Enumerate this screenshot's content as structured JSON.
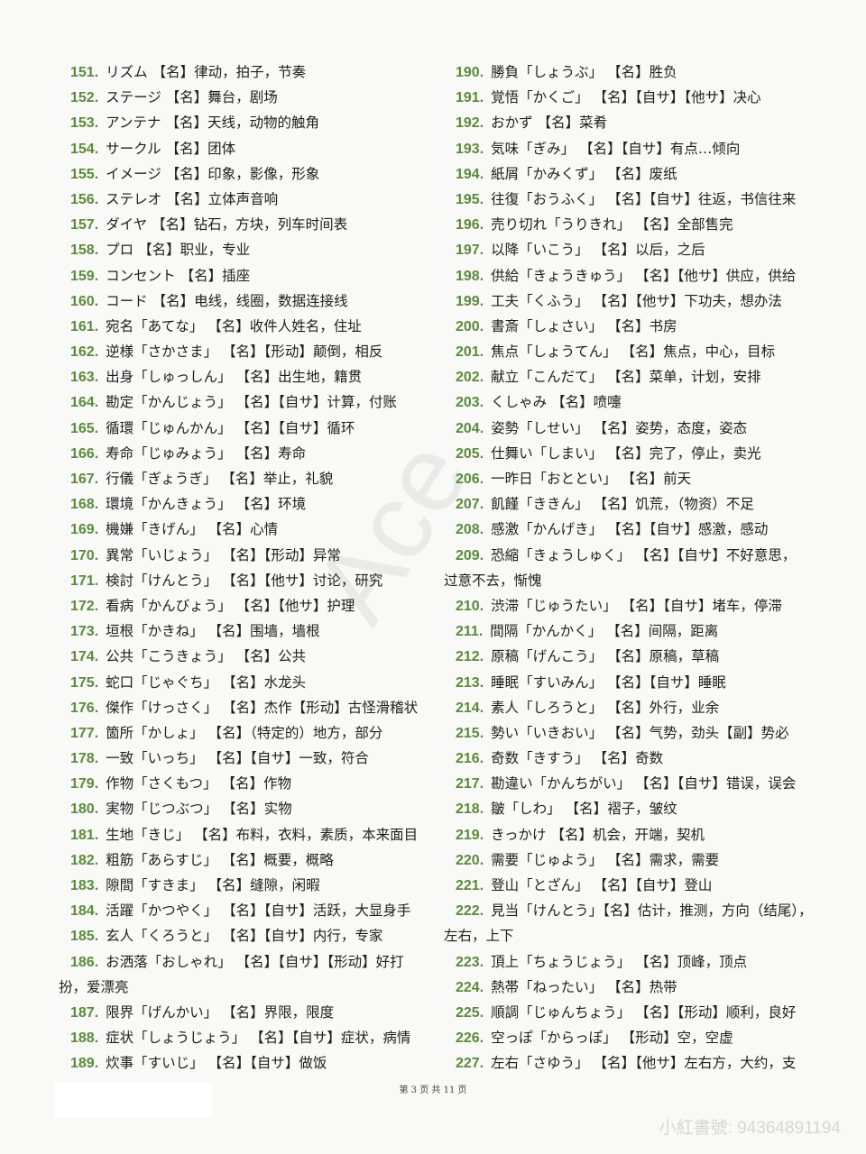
{
  "left_column": [
    {
      "num": "151.",
      "text": "リズム 【名】律动，拍子，节奏"
    },
    {
      "num": "152.",
      "text": "ステージ 【名】舞台，剧场"
    },
    {
      "num": "153.",
      "text": "アンテナ 【名】天线，动物的触角"
    },
    {
      "num": "154.",
      "text": "サークル 【名】团体"
    },
    {
      "num": "155.",
      "text": "イメージ 【名】印象，影像，形象"
    },
    {
      "num": "156.",
      "text": "ステレオ 【名】立体声音响"
    },
    {
      "num": "157.",
      "text": "ダイヤ 【名】钻石，方块，列车时间表"
    },
    {
      "num": "158.",
      "text": "プロ 【名】职业，专业"
    },
    {
      "num": "159.",
      "text": "コンセント 【名】插座"
    },
    {
      "num": "160.",
      "text": "コード 【名】电线，线圈，数据连接线"
    },
    {
      "num": "161.",
      "text": "宛名「あてな」 【名】收件人姓名，住址"
    },
    {
      "num": "162.",
      "text": "逆様「さかさま」 【名】【形动】颠倒，相反"
    },
    {
      "num": "163.",
      "text": "出身「しゅっしん」 【名】出生地，籍贯"
    },
    {
      "num": "164.",
      "text": "勘定「かんじょう」 【名】【自サ】计算，付账"
    },
    {
      "num": "165.",
      "text": "循環「じゅんかん」 【名】【自サ】循环"
    },
    {
      "num": "166.",
      "text": "寿命「じゅみょう」 【名】寿命"
    },
    {
      "num": "167.",
      "text": "行儀「ぎょうぎ」 【名】举止，礼貌"
    },
    {
      "num": "168.",
      "text": "環境「かんきょう」 【名】环境"
    },
    {
      "num": "169.",
      "text": "機嫌「きげん」 【名】心情"
    },
    {
      "num": "170.",
      "text": "異常「いじょう」 【名】【形动】异常"
    },
    {
      "num": "171.",
      "text": "検討「けんとう」 【名】【他サ】讨论，研究"
    },
    {
      "num": "172.",
      "text": "看病「かんびょう」 【名】【他サ】护理"
    },
    {
      "num": "173.",
      "text": "垣根「かきね」 【名】围墙，墙根"
    },
    {
      "num": "174.",
      "text": "公共「こうきょう」 【名】公共"
    },
    {
      "num": "175.",
      "text": "蛇口「じゃぐち」 【名】水龙头"
    },
    {
      "num": "176.",
      "text": "傑作「けっさく」 【名】杰作【形动】古怪滑稽状"
    },
    {
      "num": "177.",
      "text": "箇所「かしょ」 【名】（特定的）地方，部分"
    },
    {
      "num": "178.",
      "text": "一致「いっち」 【名】【自サ】一致，符合"
    },
    {
      "num": "179.",
      "text": "作物「さくもつ」 【名】作物"
    },
    {
      "num": "180.",
      "text": "実物「じつぶつ」 【名】实物"
    },
    {
      "num": "181.",
      "text": "生地「きじ」 【名】布料，衣料，素质，本来面目"
    },
    {
      "num": "182.",
      "text": "粗筋「あらすじ」 【名】概要，概略"
    },
    {
      "num": "183.",
      "text": "隙間「すきま」 【名】缝隙，闲暇"
    },
    {
      "num": "184.",
      "text": "活躍「かつやく」 【名】【自サ】活跃，大显身手"
    },
    {
      "num": "185.",
      "text": "玄人「くろうと」 【名】【自サ】内行，专家"
    },
    {
      "num": "186.",
      "text": "お洒落「おしゃれ」 【名】【自サ】【形动】好打",
      "cont": "扮，爱漂亮"
    },
    {
      "num": "187.",
      "text": "限界「げんかい」 【名】界限，限度"
    },
    {
      "num": "188.",
      "text": "症状「しょうじょう」 【名】【自サ】症状，病情"
    },
    {
      "num": "189.",
      "text": "炊事「すいじ」 【名】【自サ】做饭"
    }
  ],
  "right_column": [
    {
      "num": "190.",
      "text": "勝負「しょうぶ」 【名】胜负"
    },
    {
      "num": "191.",
      "text": "覚悟「かくご」 【名】【自サ】【他サ】决心"
    },
    {
      "num": "192.",
      "text": "おかず 【名】菜肴"
    },
    {
      "num": "193.",
      "text": "気味「ぎみ」 【名】【自サ】有点…倾向"
    },
    {
      "num": "194.",
      "text": "紙屑「かみくず」 【名】废纸"
    },
    {
      "num": "195.",
      "text": "往復「おうふく」 【名】【自サ】往返，书信往来"
    },
    {
      "num": "196.",
      "text": "売り切れ「うりきれ」 【名】全部售完"
    },
    {
      "num": "197.",
      "text": "以降「いこう」 【名】以后，之后"
    },
    {
      "num": "198.",
      "text": "供給「きょうきゅう」 【名】【他サ】供应，供给"
    },
    {
      "num": "199.",
      "text": "工夫「くふう」 【名】【他サ】下功夫，想办法"
    },
    {
      "num": "200.",
      "text": "書斎「しょさい」 【名】书房"
    },
    {
      "num": "201.",
      "text": "焦点「しょうてん」 【名】焦点，中心，目标"
    },
    {
      "num": "202.",
      "text": "献立「こんだて」 【名】菜单，计划，安排"
    },
    {
      "num": "203.",
      "text": "くしゃみ 【名】喷嚏"
    },
    {
      "num": "204.",
      "text": "姿勢「しせい」 【名】姿势，态度，姿态"
    },
    {
      "num": "205.",
      "text": "仕舞い「しまい」 【名】完了，停止，卖光"
    },
    {
      "num": "206.",
      "text": "一昨日「おととい」 【名】前天"
    },
    {
      "num": "207.",
      "text": "飢饉「ききん」 【名】饥荒，（物资）不足"
    },
    {
      "num": "208.",
      "text": "感激「かんげき」 【名】【自サ】感激，感动"
    },
    {
      "num": "209.",
      "text": "恐縮「きょうしゅく」 【名】【自サ】不好意思，",
      "cont": "过意不去，惭愧"
    },
    {
      "num": "210.",
      "text": "渋滞「じゅうたい」 【名】【自サ】堵车，停滞"
    },
    {
      "num": "211.",
      "text": "間隔「かんかく」 【名】间隔，距离"
    },
    {
      "num": "212.",
      "text": "原稿「げんこう」 【名】原稿，草稿"
    },
    {
      "num": "213.",
      "text": "睡眠「すいみん」 【名】【自サ】睡眠"
    },
    {
      "num": "214.",
      "text": "素人「しろうと」 【名】外行，业余"
    },
    {
      "num": "215.",
      "text": "勢い「いきおい」 【名】气势，劲头【副】势必"
    },
    {
      "num": "216.",
      "text": "奇数「きすう」 【名】奇数"
    },
    {
      "num": "217.",
      "text": "勘違い「かんちがい」 【名】【自サ】错误，误会"
    },
    {
      "num": "218.",
      "text": "皺「しわ」 【名】褶子，皱纹"
    },
    {
      "num": "219.",
      "text": "きっかけ 【名】机会，开端，契机"
    },
    {
      "num": "220.",
      "text": "需要「じゅよう」 【名】需求，需要"
    },
    {
      "num": "221.",
      "text": "登山「とざん」 【名】【自サ】登山"
    },
    {
      "num": "222.",
      "text": "見当「けんとう」【名】估计，推测，方向（结尾），",
      "cont": "左右，上下"
    },
    {
      "num": "223.",
      "text": "頂上「ちょうじょう」 【名】顶峰，顶点"
    },
    {
      "num": "224.",
      "text": "熱帯「ねったい」 【名】热带"
    },
    {
      "num": "225.",
      "text": "順調「じゅんちょう」 【名】【形动】顺利，良好"
    },
    {
      "num": "226.",
      "text": "空っぽ「からっぽ」 【形动】空，空虚"
    },
    {
      "num": "227.",
      "text": "左右「さゆう」 【名】【他サ】左右方，大约，支"
    }
  ],
  "footer": {
    "page_label": "第 3 页 共 11 页"
  },
  "watermark": {
    "text": "小紅書號: 94364891194"
  },
  "colors": {
    "number": "#5b8a3c",
    "text": "#1e1e1e",
    "background": "#f9f9f7"
  }
}
